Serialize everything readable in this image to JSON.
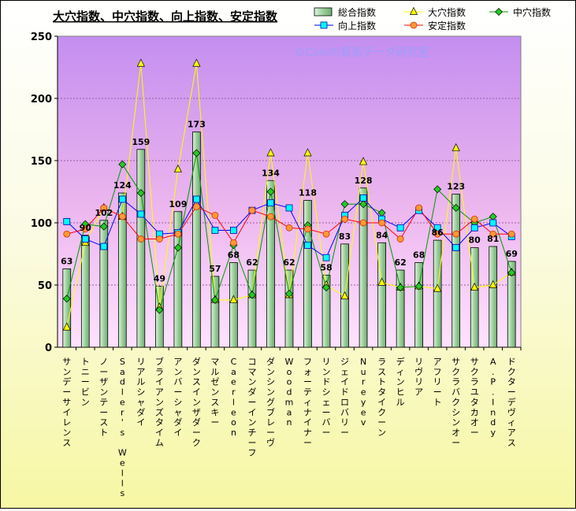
{
  "chart_data": {
    "type": "bar",
    "title": "大穴指数、中穴指数、向上指数、安定指数",
    "watermark": "©Coniの競馬データ研究室",
    "ylim": [
      0,
      250
    ],
    "yticks": [
      0,
      50,
      100,
      150,
      200,
      250
    ],
    "grid": true,
    "legend_position": "top-right",
    "categories": [
      "サンデーサイレンス",
      "トニービン",
      "ノーザンテースト",
      "Sadler's Wells",
      "リアルシャダイ",
      "ブライアンズタイム",
      "アンバーシャダイ",
      "ダンスインザダーク",
      "マルゼンスキー",
      "Caerleon",
      "コマンダーインチーフ",
      "ダンシングブレーヴ",
      "Woodman",
      "フォーティナイナー",
      "リンドシェーバー",
      "ジェイドロバリー",
      "Nureyev",
      "ラストタイクーン",
      "ディンヒル",
      "リヴリア",
      "アフリート",
      "サクラバクシンオー",
      "サクラユタカオー",
      "A.P.Indy",
      "ドクターデヴィアス"
    ],
    "series": [
      {
        "name": "総合指数",
        "type": "bar",
        "color": "#b4dcb4",
        "values": [
          63,
          90,
          102,
          124,
          159,
          49,
          109,
          173,
          57,
          68,
          62,
          134,
          62,
          118,
          58,
          83,
          128,
          84,
          62,
          68,
          86,
          123,
          80,
          81,
          69
        ]
      },
      {
        "name": "大穴指数",
        "type": "line",
        "color": "#ffff00",
        "marker": "triangle",
        "values": [
          16,
          84,
          112,
          105,
          228,
          32,
          143,
          228,
          38,
          38,
          42,
          156,
          42,
          156,
          50,
          41,
          149,
          52,
          48,
          49,
          47,
          160,
          48,
          50,
          60
        ]
      },
      {
        "name": "中穴指数",
        "type": "line",
        "color": "#009900",
        "marker": "diamond",
        "values": [
          39,
          99,
          97,
          147,
          124,
          30,
          80,
          156,
          38,
          82,
          42,
          125,
          43,
          98,
          48,
          115,
          115,
          108,
          48,
          49,
          127,
          112,
          100,
          105,
          60
        ]
      },
      {
        "name": "向上指数",
        "type": "line",
        "color": "#0000ff",
        "marker": "square",
        "values": [
          101,
          87,
          81,
          119,
          107,
          91,
          92,
          119,
          94,
          94,
          110,
          116,
          112,
          82,
          72,
          106,
          120,
          103,
          96,
          110,
          96,
          80,
          96,
          100,
          89
        ]
      },
      {
        "name": "安定指数",
        "type": "line",
        "color": "#ff0000",
        "marker": "circle",
        "values": [
          91,
          95,
          112,
          105,
          87,
          87,
          91,
          113,
          106,
          84,
          110,
          105,
          96,
          95,
          91,
          103,
          100,
          100,
          87,
          112,
          91,
          91,
          103,
          91,
          91
        ]
      }
    ]
  }
}
